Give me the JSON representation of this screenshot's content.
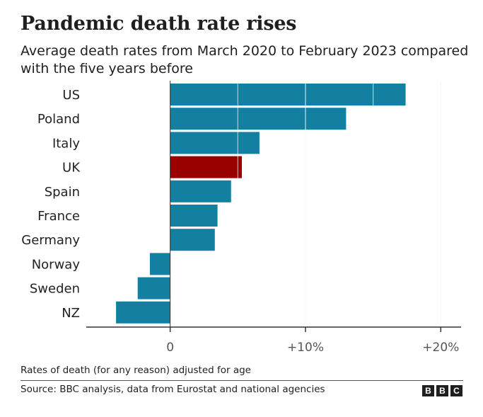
{
  "header": {
    "title": "Pandemic death rate rises",
    "subtitle": "Average death rates from March 2020 to February 2023 compared with the five years before"
  },
  "chart_data": {
    "type": "bar",
    "orientation": "horizontal",
    "categories": [
      "US",
      "Poland",
      "Italy",
      "UK",
      "Spain",
      "France",
      "Germany",
      "Norway",
      "Sweden",
      "NZ"
    ],
    "values": [
      17.4,
      13.0,
      6.6,
      5.3,
      4.5,
      3.5,
      3.3,
      -1.5,
      -2.4,
      -4.0
    ],
    "highlight": "UK",
    "xlim": [
      -6.2,
      21.5
    ],
    "ticks": [
      0,
      10,
      20
    ],
    "tick_labels": [
      "0",
      "+10%",
      "+20%"
    ],
    "grid": true,
    "colors": {
      "bar": "#1380A1",
      "highlight": "#990000",
      "axis": "#333333"
    }
  },
  "footer": {
    "note": "Rates of death (for any reason) adjusted for age",
    "source": "Source: BBC analysis, data from Eurostat and national agencies",
    "logo": [
      "B",
      "B",
      "C"
    ]
  }
}
